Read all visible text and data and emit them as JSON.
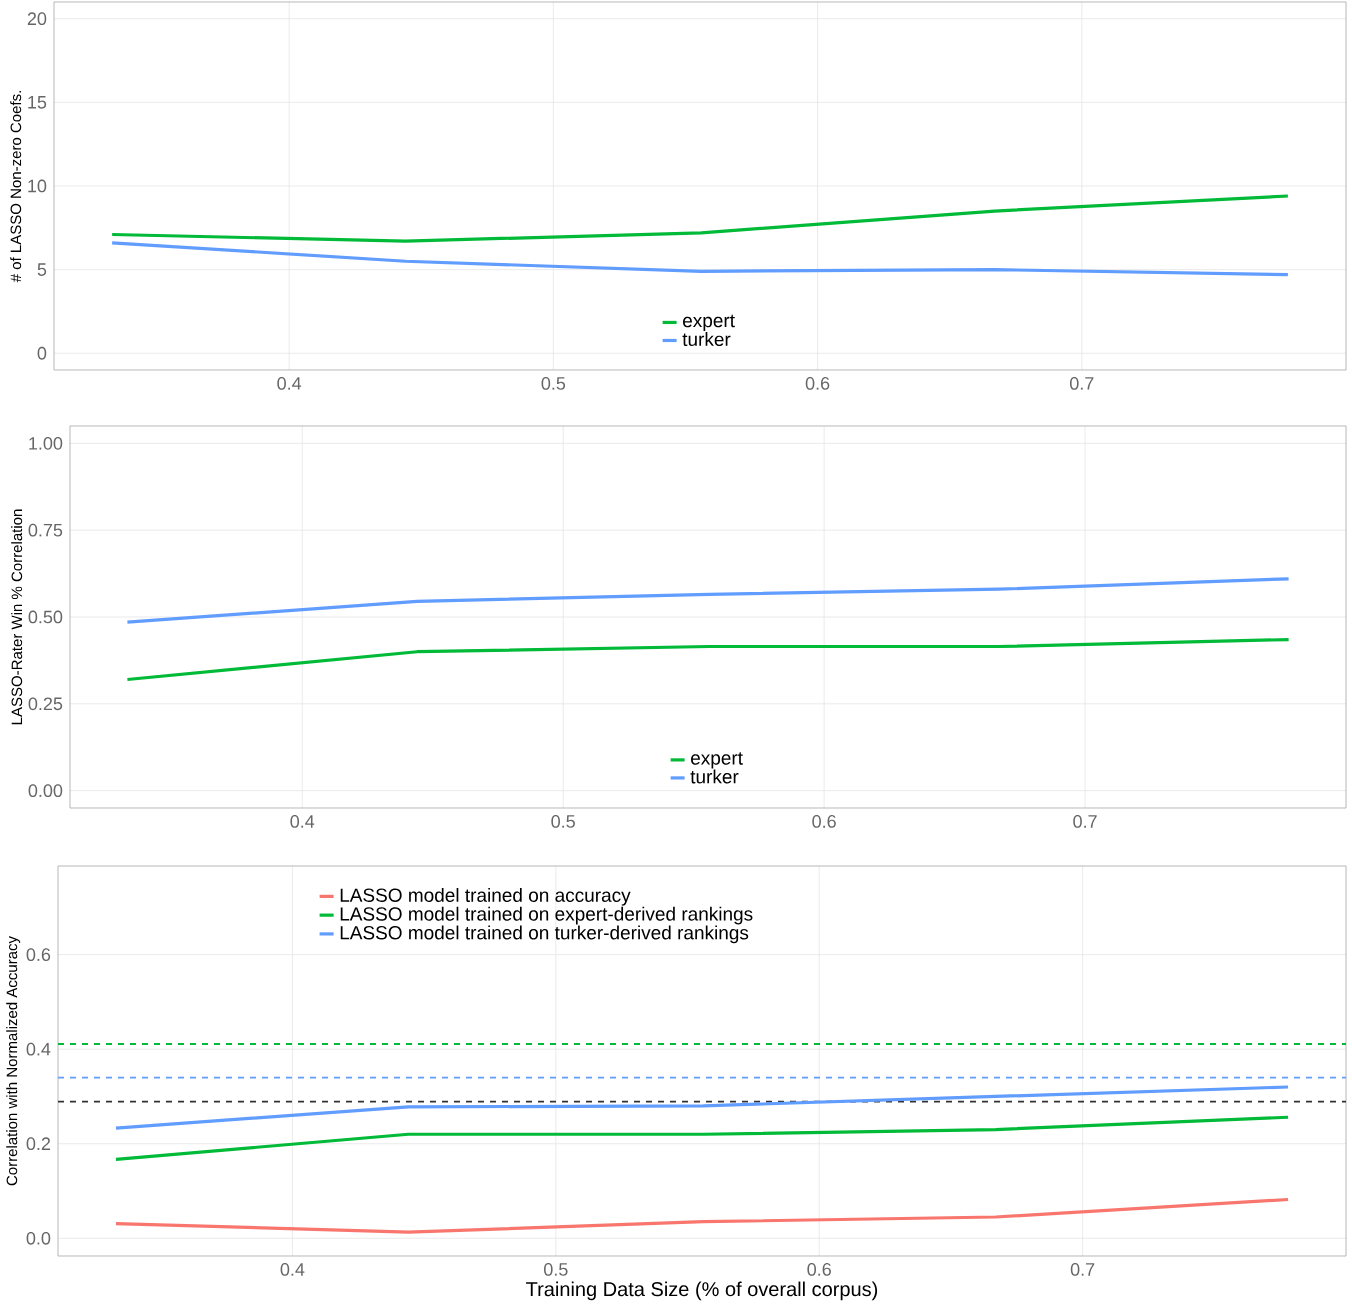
{
  "chart_data": [
    {
      "type": "line",
      "ylabel": "# of LASSO Non-zero Coefs.",
      "x": [
        0.333,
        0.444,
        0.556,
        0.667,
        0.778
      ],
      "xlim": [
        0.311,
        0.8
      ],
      "xticks": [
        0.4,
        0.5,
        0.6,
        0.7
      ],
      "ylim": [
        -1,
        21
      ],
      "yticks": [
        0,
        5,
        10,
        15,
        20
      ],
      "grid": true,
      "legend": "bottom",
      "series": [
        {
          "name": "expert",
          "color": "#00ba38",
          "values": [
            7.1,
            6.7,
            7.2,
            8.5,
            9.4
          ]
        },
        {
          "name": "turker",
          "color": "#619cff",
          "values": [
            6.6,
            5.5,
            4.9,
            5.0,
            4.7
          ]
        }
      ]
    },
    {
      "type": "line",
      "ylabel": "LASSO-Rater Win % Correlation",
      "x": [
        0.333,
        0.444,
        0.556,
        0.667,
        0.778
      ],
      "xlim": [
        0.311,
        0.8
      ],
      "xticks": [
        0.4,
        0.5,
        0.6,
        0.7
      ],
      "ylim": [
        -0.05,
        1.05
      ],
      "yticks": [
        {
          "value": 0,
          "label": "0.00"
        },
        {
          "value": 0.25,
          "label": "0.25"
        },
        {
          "value": 0.5,
          "label": "0.50"
        },
        {
          "value": 0.75,
          "label": "0.75"
        },
        {
          "value": 1,
          "label": "1.00"
        }
      ],
      "grid": true,
      "legend": "bottom",
      "series": [
        {
          "name": "expert",
          "color": "#00ba38",
          "values": [
            0.32,
            0.4,
            0.415,
            0.415,
            0.435
          ]
        },
        {
          "name": "turker",
          "color": "#619cff",
          "values": [
            0.485,
            0.545,
            0.565,
            0.58,
            0.61
          ]
        }
      ]
    },
    {
      "type": "line",
      "xlabel": "Training Data Size (% of overall corpus)",
      "ylabel": "Correlation with Normalized Accuracy",
      "x": [
        0.333,
        0.444,
        0.556,
        0.667,
        0.778
      ],
      "xlim": [
        0.311,
        0.8
      ],
      "xticks": [
        0.4,
        0.5,
        0.6,
        0.7
      ],
      "ylim": [
        -0.0375,
        0.7875
      ],
      "yticks": [
        {
          "value": 0,
          "label": "0.0"
        },
        {
          "value": 0.2,
          "label": "0.2"
        },
        {
          "value": 0.4,
          "label": "0.4"
        },
        {
          "value": 0.6,
          "label": "0.6"
        }
      ],
      "grid": true,
      "legend": "top left",
      "series": [
        {
          "name": "LASSO model trained on accuracy",
          "color": "#f8766d",
          "values": [
            0.031,
            0.013,
            0.035,
            0.045,
            0.082
          ]
        },
        {
          "name": "LASSO model trained on expert-derived rankings",
          "color": "#00ba38",
          "values": [
            0.167,
            0.22,
            0.22,
            0.23,
            0.256
          ]
        },
        {
          "name": "LASSO model trained on turker-derived rankings",
          "color": "#619cff",
          "values": [
            0.233,
            0.278,
            0.28,
            0.3,
            0.32
          ]
        }
      ],
      "ref_lines": [
        {
          "axis": "y",
          "value": 0.411,
          "color": "#00ba38",
          "line_style": "dashed"
        },
        {
          "axis": "y",
          "value": 0.34,
          "color": "#619cff",
          "line_style": "dashed"
        },
        {
          "axis": "y",
          "value": 0.289,
          "color": "#333333",
          "line_style": "dashed"
        }
      ]
    }
  ]
}
